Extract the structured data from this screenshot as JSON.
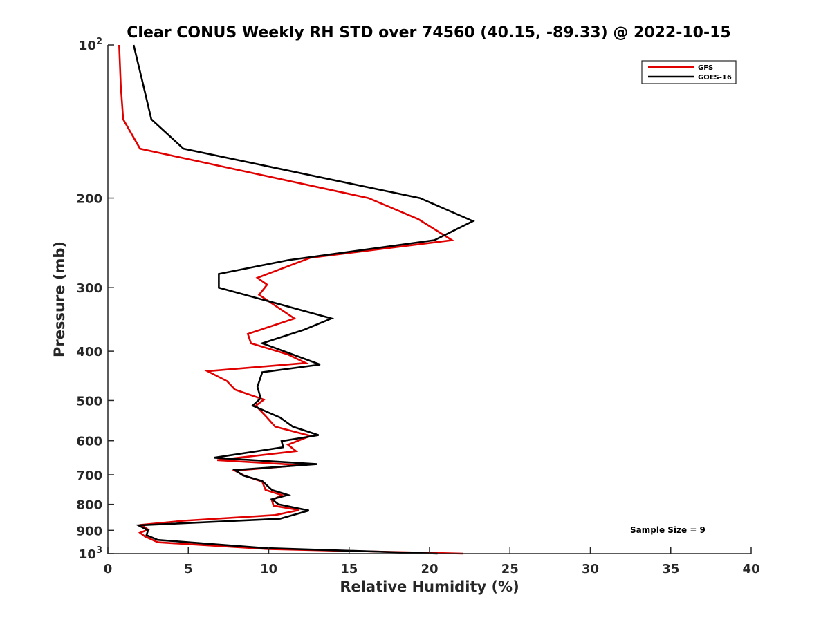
{
  "chart_data": {
    "type": "line",
    "title": "Clear CONUS Weekly RH STD over 74560 (40.15, -89.33) @ 2022-10-15",
    "xlabel": "Relative Humidity (%)",
    "ylabel": "Pressure (mb)",
    "xlim": [
      0,
      40
    ],
    "ylim": [
      100,
      1000
    ],
    "yscale": "log",
    "y_reversed": true,
    "grid": false,
    "legend_position": "top-right",
    "x_ticks": [
      0,
      5,
      10,
      15,
      20,
      25,
      30,
      35,
      40
    ],
    "x_tick_labels": [
      "0",
      "5",
      "10",
      "15",
      "20",
      "25",
      "30",
      "35",
      "40"
    ],
    "y_ticks": [
      100,
      200,
      300,
      400,
      500,
      600,
      700,
      800,
      900,
      1000
    ],
    "y_tick_labels": [
      "10^2",
      "200",
      "300",
      "400",
      "500",
      "600",
      "700",
      "800",
      "900",
      "10^3"
    ],
    "annotation": "Sample Size = 9",
    "series": [
      {
        "name": "GFS",
        "color": "#e00000",
        "points": [
          [
            0.7,
            100
          ],
          [
            0.8,
            120
          ],
          [
            0.95,
            140
          ],
          [
            2.0,
            160
          ],
          [
            16.2,
            200
          ],
          [
            19.3,
            220
          ],
          [
            21.4,
            242
          ],
          [
            12.6,
            262
          ],
          [
            9.3,
            287
          ],
          [
            9.9,
            296
          ],
          [
            9.4,
            310
          ],
          [
            11.6,
            345
          ],
          [
            8.7,
            370
          ],
          [
            8.9,
            386
          ],
          [
            11.2,
            406
          ],
          [
            12.3,
            422
          ],
          [
            6.2,
            438
          ],
          [
            7.4,
            458
          ],
          [
            7.9,
            476
          ],
          [
            9.7,
            498
          ],
          [
            9.2,
            512
          ],
          [
            9.8,
            536
          ],
          [
            10.4,
            563
          ],
          [
            12.6,
            587
          ],
          [
            11.2,
            611
          ],
          [
            11.7,
            629
          ],
          [
            6.8,
            655
          ],
          [
            12.0,
            670
          ],
          [
            7.9,
            687
          ],
          [
            8.5,
            703
          ],
          [
            9.6,
            722
          ],
          [
            9.8,
            750
          ],
          [
            10.8,
            767
          ],
          [
            10.2,
            786
          ],
          [
            10.3,
            805
          ],
          [
            11.9,
            821
          ],
          [
            10.4,
            840
          ],
          [
            4.7,
            862
          ],
          [
            2.1,
            878
          ],
          [
            2.5,
            897
          ],
          [
            2.0,
            910
          ],
          [
            2.3,
            925
          ],
          [
            3.1,
            950
          ],
          [
            10.0,
            980
          ],
          [
            22.1,
            1000
          ]
        ]
      },
      {
        "name": "GOES-16",
        "color": "#000000",
        "points": [
          [
            1.6,
            100
          ],
          [
            2.2,
            120
          ],
          [
            2.7,
            140
          ],
          [
            4.7,
            160
          ],
          [
            19.4,
            200
          ],
          [
            22.7,
            222
          ],
          [
            20.3,
            242
          ],
          [
            11.2,
            265
          ],
          [
            6.9,
            282
          ],
          [
            6.9,
            300
          ],
          [
            13.9,
            345
          ],
          [
            12.2,
            363
          ],
          [
            9.6,
            386
          ],
          [
            13.2,
            425
          ],
          [
            9.6,
            440
          ],
          [
            9.3,
            470
          ],
          [
            9.5,
            495
          ],
          [
            9.0,
            512
          ],
          [
            10.7,
            540
          ],
          [
            11.5,
            563
          ],
          [
            13.1,
            585
          ],
          [
            10.8,
            601
          ],
          [
            10.9,
            618
          ],
          [
            6.6,
            648
          ],
          [
            13.0,
            667
          ],
          [
            7.9,
            685
          ],
          [
            8.4,
            702
          ],
          [
            9.6,
            720
          ],
          [
            10.2,
            750
          ],
          [
            11.2,
            767
          ],
          [
            10.2,
            782
          ],
          [
            10.6,
            800
          ],
          [
            12.5,
            823
          ],
          [
            10.7,
            854
          ],
          [
            1.9,
            880
          ],
          [
            2.5,
            900
          ],
          [
            2.4,
            920
          ],
          [
            3.1,
            940
          ],
          [
            9.7,
            975
          ],
          [
            20.5,
            1000
          ]
        ]
      }
    ]
  }
}
